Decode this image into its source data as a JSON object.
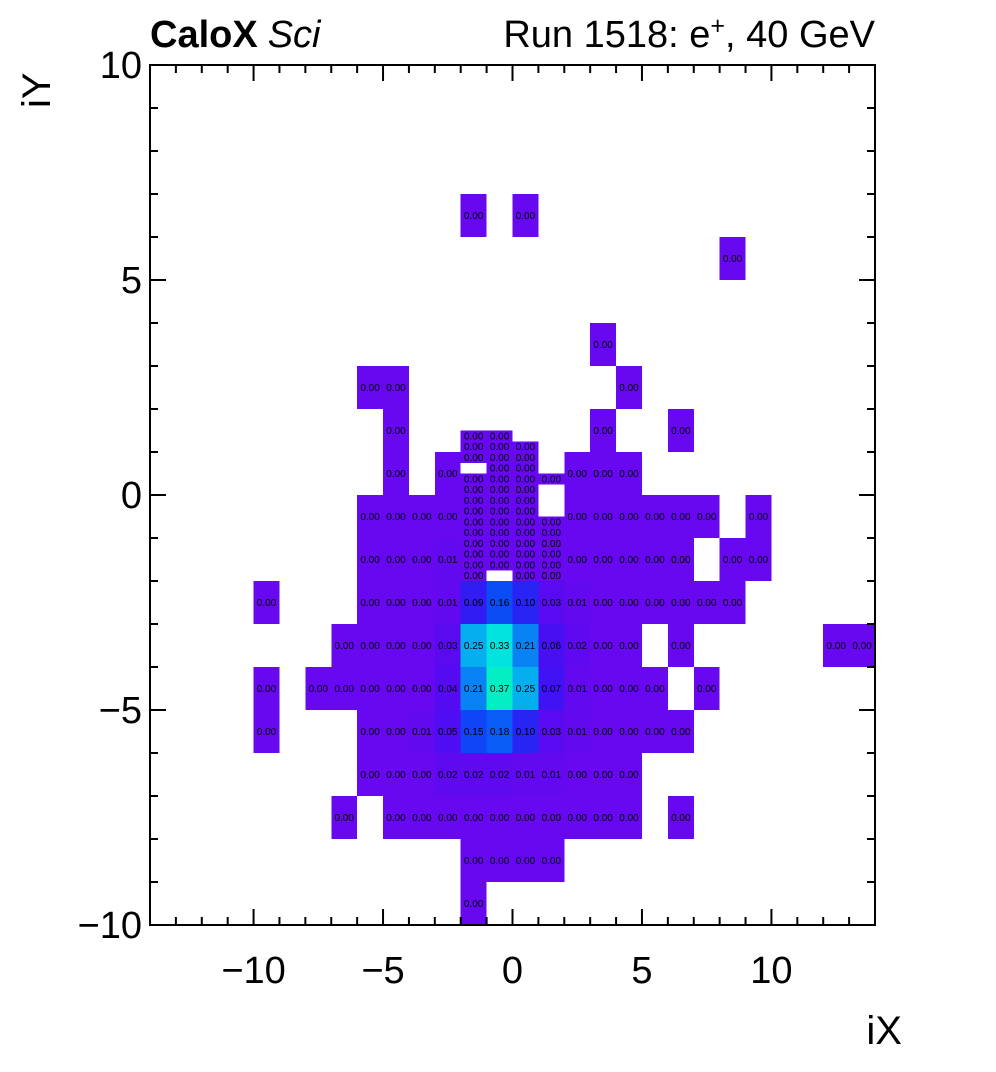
{
  "header": {
    "left_bold": "CaloX",
    "left_italic": "Sci",
    "right_prefix": "Run 1518: e",
    "right_sup": "+",
    "right_suffix": ", 40 GeV"
  },
  "chart_data": {
    "type": "heatmap",
    "title": "CaloX Sci — Run 1518: e+, 40 GeV",
    "xlabel": "iX",
    "ylabel": "iY",
    "xlim": [
      -14,
      14
    ],
    "ylim": [
      -10,
      10
    ],
    "grid": false,
    "legend": "none",
    "x_major_ticks": [
      -10,
      -5,
      0,
      5,
      10
    ],
    "x_major_labels": [
      "−10",
      "−5",
      "0",
      "5",
      "10"
    ],
    "y_major_ticks": [
      -10,
      -5,
      0,
      5,
      10
    ],
    "y_major_labels": [
      "−10",
      "−5",
      "0",
      "5",
      "10"
    ],
    "x_minor_step": 1,
    "y_minor_step": 1,
    "value_decimals": 2,
    "cell_text_color": "#000000",
    "frame_color": "#000000",
    "palette_stops": [
      [
        0.0,
        "#6708F0"
      ],
      [
        0.02,
        "#5F09F0"
      ],
      [
        0.04,
        "#550BF1"
      ],
      [
        0.06,
        "#470FF2"
      ],
      [
        0.08,
        "#3A14F3"
      ],
      [
        0.1,
        "#2824F3"
      ],
      [
        0.13,
        "#1437F4"
      ],
      [
        0.16,
        "#0C4CF5"
      ],
      [
        0.18,
        "#0A5CF6"
      ],
      [
        0.21,
        "#0983F3"
      ],
      [
        0.25,
        "#05AEEF"
      ],
      [
        0.29,
        "#02CDE9"
      ],
      [
        0.33,
        "#00E3DF"
      ],
      [
        0.37,
        "#03EFC3"
      ]
    ],
    "cells": [
      [
        -2,
        6,
        1,
        1,
        0
      ],
      [
        0,
        6,
        1,
        1,
        0
      ],
      [
        8,
        5,
        1,
        1,
        0
      ],
      [
        3,
        3,
        1,
        1,
        0
      ],
      [
        -6,
        2,
        1,
        1,
        0
      ],
      [
        -5,
        2,
        1,
        1,
        0
      ],
      [
        4,
        2,
        1,
        1,
        0
      ],
      [
        -5,
        1,
        1,
        1,
        0
      ],
      [
        3,
        1,
        1,
        1,
        0
      ],
      [
        6,
        1,
        1,
        1,
        0
      ],
      [
        -5,
        0,
        1,
        1,
        0
      ],
      [
        -3,
        0,
        1,
        1,
        0
      ],
      [
        2,
        0,
        1,
        1,
        0
      ],
      [
        3,
        0,
        1,
        1,
        0
      ],
      [
        4,
        0,
        1,
        1,
        0
      ],
      [
        -6,
        -1,
        1,
        1,
        0
      ],
      [
        -5,
        -1,
        1,
        1,
        0
      ],
      [
        -4,
        -1,
        1,
        1,
        0
      ],
      [
        -3,
        -1,
        1,
        1,
        0
      ],
      [
        2,
        -1,
        1,
        1,
        0
      ],
      [
        3,
        -1,
        1,
        1,
        0
      ],
      [
        4,
        -1,
        1,
        1,
        0
      ],
      [
        5,
        -1,
        1,
        1,
        0
      ],
      [
        6,
        -1,
        1,
        1,
        0
      ],
      [
        7,
        -1,
        1,
        1,
        0
      ],
      [
        9,
        -1,
        1,
        1,
        0
      ],
      [
        -6,
        -2,
        1,
        1,
        0
      ],
      [
        -5,
        -2,
        1,
        1,
        0
      ],
      [
        -4,
        -2,
        1,
        1,
        0
      ],
      [
        -3,
        -2,
        1,
        1,
        0.01
      ],
      [
        2,
        -2,
        1,
        1,
        0
      ],
      [
        3,
        -2,
        1,
        1,
        0
      ],
      [
        4,
        -2,
        1,
        1,
        0
      ],
      [
        5,
        -2,
        1,
        1,
        0
      ],
      [
        6,
        -2,
        1,
        1,
        0
      ],
      [
        8,
        -2,
        1,
        1,
        0
      ],
      [
        9,
        -2,
        1,
        1,
        0
      ],
      [
        -10,
        -3,
        1,
        1,
        0
      ],
      [
        -6,
        -3,
        1,
        1,
        0
      ],
      [
        -5,
        -3,
        1,
        1,
        0
      ],
      [
        -4,
        -3,
        1,
        1,
        0
      ],
      [
        -3,
        -3,
        1,
        1,
        0.01
      ],
      [
        -2,
        -3,
        1,
        1,
        0.09
      ],
      [
        -1,
        -3,
        1,
        1,
        0.16
      ],
      [
        0,
        -3,
        1,
        1,
        0.1
      ],
      [
        1,
        -3,
        1,
        1,
        0.03
      ],
      [
        2,
        -3,
        1,
        1,
        0.01
      ],
      [
        3,
        -3,
        1,
        1,
        0
      ],
      [
        4,
        -3,
        1,
        1,
        0
      ],
      [
        5,
        -3,
        1,
        1,
        0
      ],
      [
        6,
        -3,
        1,
        1,
        0
      ],
      [
        7,
        -3,
        1,
        1,
        0
      ],
      [
        8,
        -3,
        1,
        1,
        0
      ],
      [
        -7,
        -4,
        1,
        1,
        0
      ],
      [
        -6,
        -4,
        1,
        1,
        0
      ],
      [
        -5,
        -4,
        1,
        1,
        0
      ],
      [
        -4,
        -4,
        1,
        1,
        0
      ],
      [
        -3,
        -4,
        1,
        1,
        0.03
      ],
      [
        -2,
        -4,
        1,
        1,
        0.25
      ],
      [
        -1,
        -4,
        1,
        1,
        0.33
      ],
      [
        0,
        -4,
        1,
        1,
        0.21
      ],
      [
        1,
        -4,
        1,
        1,
        0.06
      ],
      [
        2,
        -4,
        1,
        1,
        0.02
      ],
      [
        3,
        -4,
        1,
        1,
        0
      ],
      [
        4,
        -4,
        1,
        1,
        0
      ],
      [
        6,
        -4,
        1,
        1,
        0
      ],
      [
        12,
        -4,
        1,
        1,
        0
      ],
      [
        13,
        -4,
        1,
        1,
        0
      ],
      [
        -10,
        -5,
        1,
        1,
        0
      ],
      [
        -8,
        -5,
        1,
        1,
        0
      ],
      [
        -7,
        -5,
        1,
        1,
        0
      ],
      [
        -6,
        -5,
        1,
        1,
        0
      ],
      [
        -5,
        -5,
        1,
        1,
        0
      ],
      [
        -4,
        -5,
        1,
        1,
        0
      ],
      [
        -3,
        -5,
        1,
        1,
        0.04
      ],
      [
        -2,
        -5,
        1,
        1,
        0.21
      ],
      [
        -1,
        -5,
        1,
        1,
        0.37
      ],
      [
        0,
        -5,
        1,
        1,
        0.25
      ],
      [
        1,
        -5,
        1,
        1,
        0.07
      ],
      [
        2,
        -5,
        1,
        1,
        0.01
      ],
      [
        3,
        -5,
        1,
        1,
        0
      ],
      [
        4,
        -5,
        1,
        1,
        0
      ],
      [
        5,
        -5,
        1,
        1,
        0
      ],
      [
        7,
        -5,
        1,
        1,
        0
      ],
      [
        -10,
        -6,
        1,
        1,
        0
      ],
      [
        -6,
        -6,
        1,
        1,
        0
      ],
      [
        -5,
        -6,
        1,
        1,
        0
      ],
      [
        -4,
        -6,
        1,
        1,
        0.01
      ],
      [
        -3,
        -6,
        1,
        1,
        0.05
      ],
      [
        -2,
        -6,
        1,
        1,
        0.15
      ],
      [
        -1,
        -6,
        1,
        1,
        0.18
      ],
      [
        0,
        -6,
        1,
        1,
        0.1
      ],
      [
        1,
        -6,
        1,
        1,
        0.03
      ],
      [
        2,
        -6,
        1,
        1,
        0.01
      ],
      [
        3,
        -6,
        1,
        1,
        0
      ],
      [
        4,
        -6,
        1,
        1,
        0
      ],
      [
        5,
        -6,
        1,
        1,
        0
      ],
      [
        6,
        -6,
        1,
        1,
        0
      ],
      [
        -6,
        -7,
        1,
        1,
        0
      ],
      [
        -5,
        -7,
        1,
        1,
        0
      ],
      [
        -4,
        -7,
        1,
        1,
        0
      ],
      [
        -3,
        -7,
        1,
        1,
        0.02
      ],
      [
        -2,
        -7,
        1,
        1,
        0.02
      ],
      [
        -1,
        -7,
        1,
        1,
        0.02
      ],
      [
        0,
        -7,
        1,
        1,
        0.01
      ],
      [
        1,
        -7,
        1,
        1,
        0.01
      ],
      [
        2,
        -7,
        1,
        1,
        0
      ],
      [
        3,
        -7,
        1,
        1,
        0
      ],
      [
        4,
        -7,
        1,
        1,
        0
      ],
      [
        -7,
        -8,
        1,
        1,
        0
      ],
      [
        -5,
        -8,
        1,
        1,
        0
      ],
      [
        -4,
        -8,
        1,
        1,
        0
      ],
      [
        -3,
        -8,
        1,
        1,
        0
      ],
      [
        -2,
        -8,
        1,
        1,
        0
      ],
      [
        -1,
        -8,
        1,
        1,
        0
      ],
      [
        0,
        -8,
        1,
        1,
        0
      ],
      [
        1,
        -8,
        1,
        1,
        0
      ],
      [
        2,
        -8,
        1,
        1,
        0
      ],
      [
        3,
        -8,
        1,
        1,
        0
      ],
      [
        4,
        -8,
        1,
        1,
        0
      ],
      [
        6,
        -8,
        1,
        1,
        0
      ],
      [
        -2,
        -9,
        1,
        1,
        0
      ],
      [
        -1,
        -9,
        1,
        1,
        0
      ],
      [
        0,
        -9,
        1,
        1,
        0
      ],
      [
        1,
        -9,
        1,
        1,
        0
      ],
      [
        -2,
        -10,
        1,
        1,
        0
      ],
      [
        -2,
        1.25,
        1,
        0.25,
        0
      ],
      [
        -2,
        1,
        1,
        0.25,
        0
      ],
      [
        -2,
        0.75,
        1,
        0.25,
        0
      ],
      [
        -2,
        0.25,
        1,
        0.25,
        0
      ],
      [
        -2,
        0,
        1,
        0.25,
        0
      ],
      [
        -2,
        -0.25,
        1,
        0.25,
        0
      ],
      [
        -2,
        -0.5,
        1,
        0.25,
        0
      ],
      [
        -2,
        -0.75,
        1,
        0.25,
        0
      ],
      [
        -2,
        -1,
        1,
        0.25,
        0
      ],
      [
        -2,
        -1.25,
        1,
        0.25,
        0
      ],
      [
        -2,
        -1.5,
        1,
        0.25,
        0
      ],
      [
        -2,
        -1.75,
        1,
        0.25,
        0
      ],
      [
        -2,
        -2,
        1,
        0.25,
        0
      ],
      [
        -1,
        1.25,
        1,
        0.25,
        0
      ],
      [
        -1,
        1,
        1,
        0.25,
        0
      ],
      [
        -1,
        0.75,
        1,
        0.25,
        0
      ],
      [
        -1,
        0.5,
        1,
        0.25,
        0
      ],
      [
        -1,
        0.25,
        1,
        0.25,
        0
      ],
      [
        -1,
        0,
        1,
        0.25,
        0
      ],
      [
        -1,
        -0.25,
        1,
        0.25,
        0
      ],
      [
        -1,
        -0.5,
        1,
        0.25,
        0
      ],
      [
        -1,
        -0.75,
        1,
        0.25,
        0
      ],
      [
        -1,
        -1,
        1,
        0.25,
        0
      ],
      [
        -1,
        -1.25,
        1,
        0.25,
        0
      ],
      [
        -1,
        -1.5,
        1,
        0.25,
        0
      ],
      [
        -1,
        -1.75,
        1,
        0.25,
        0
      ],
      [
        0,
        1,
        1,
        0.25,
        0
      ],
      [
        0,
        0.75,
        1,
        0.25,
        0
      ],
      [
        0,
        0.5,
        1,
        0.25,
        0
      ],
      [
        0,
        0.25,
        1,
        0.25,
        0
      ],
      [
        0,
        0,
        1,
        0.25,
        0
      ],
      [
        0,
        -0.25,
        1,
        0.25,
        0
      ],
      [
        0,
        -0.5,
        1,
        0.25,
        0
      ],
      [
        0,
        -0.75,
        1,
        0.25,
        0
      ],
      [
        0,
        -1,
        1,
        0.25,
        0
      ],
      [
        0,
        -1.25,
        1,
        0.25,
        0
      ],
      [
        0,
        -1.5,
        1,
        0.25,
        0
      ],
      [
        0,
        -1.75,
        1,
        0.25,
        0
      ],
      [
        0,
        -2,
        1,
        0.25,
        0
      ],
      [
        1,
        0.25,
        1,
        0.25,
        0
      ],
      [
        1,
        -0.75,
        1,
        0.25,
        0
      ],
      [
        1,
        -1,
        1,
        0.25,
        0
      ],
      [
        1,
        -1.25,
        1,
        0.25,
        0
      ],
      [
        1,
        -1.5,
        1,
        0.25,
        0
      ],
      [
        1,
        -1.75,
        1,
        0.25,
        0
      ],
      [
        1,
        -2,
        1,
        0.25,
        0
      ]
    ]
  }
}
